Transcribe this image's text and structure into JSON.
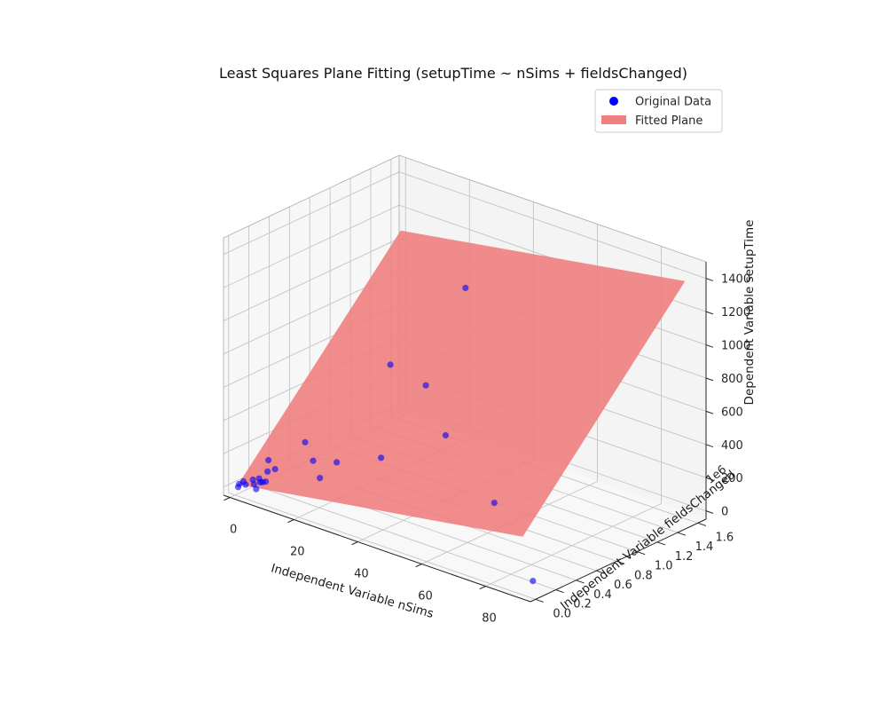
{
  "chart_data": {
    "type": "scatter3d",
    "title": "Least Squares Plane Fitting (setupTime ~ nSims + fieldsChanged)",
    "xlabel": "Independent Variable nSims",
    "ylabel": "Independent Variable fieldsChanged",
    "zlabel": "Dependent Variable setupTime",
    "y_offset_label": "1e6",
    "xlim": [
      -2,
      94
    ],
    "ylim": [
      -0.05,
      1.68
    ],
    "zlim": [
      -50,
      1500
    ],
    "x_ticks": [
      "0",
      "20",
      "40",
      "60",
      "80"
    ],
    "y_ticks": [
      "0.0",
      "0.2",
      "0.4",
      "0.6",
      "0.8",
      "1.0",
      "1.2",
      "1.4",
      "1.6"
    ],
    "z_ticks": [
      "0",
      "200",
      "400",
      "600",
      "800",
      "1000",
      "1200",
      "1400"
    ],
    "legend": {
      "placement": "top-right",
      "entries": [
        "Original Data",
        "Fitted Plane"
      ]
    },
    "colors": {
      "points": "#0000ff",
      "plane": "#f08080"
    },
    "plane": {
      "corners": [
        {
          "x": 1.0,
          "y": 0.0,
          "z": 20
        },
        {
          "x": 90.0,
          "y": 0.0,
          "z": 300
        },
        {
          "x": 90.0,
          "y": 1.6,
          "z": 1380
        },
        {
          "x": 1.0,
          "y": 1.6,
          "z": 1090
        }
      ]
    },
    "series": [
      {
        "name": "Original Data",
        "points": [
          {
            "x": 1,
            "y": 0.0,
            "z": 5
          },
          {
            "x": 1,
            "y": 0.01,
            "z": 20
          },
          {
            "x": 2,
            "y": 0.02,
            "z": 40
          },
          {
            "x": 3,
            "y": 0.01,
            "z": 30
          },
          {
            "x": 4,
            "y": 0.05,
            "z": 55
          },
          {
            "x": 5,
            "y": 0.03,
            "z": 40
          },
          {
            "x": 6,
            "y": 0.02,
            "z": 20
          },
          {
            "x": 6,
            "y": 0.06,
            "z": 50
          },
          {
            "x": 7,
            "y": 0.05,
            "z": 60
          },
          {
            "x": 8,
            "y": 0.05,
            "z": 70
          },
          {
            "x": 5,
            "y": 0.08,
            "z": 60
          },
          {
            "x": 7,
            "y": 0.1,
            "z": 110
          },
          {
            "x": 6,
            "y": 0.14,
            "z": 160
          },
          {
            "x": 10,
            "y": 0.08,
            "z": 150
          },
          {
            "x": 14,
            "y": 0.25,
            "z": 290
          },
          {
            "x": 20,
            "y": 0.14,
            "z": 250
          },
          {
            "x": 24,
            "y": 0.08,
            "z": 190
          },
          {
            "x": 28,
            "y": 0.12,
            "z": 300
          },
          {
            "x": 33,
            "y": 0.4,
            "z": 280
          },
          {
            "x": 27,
            "y": 0.68,
            "z": 720
          },
          {
            "x": 40,
            "y": 0.62,
            "z": 700
          },
          {
            "x": 50,
            "y": 0.5,
            "z": 500
          },
          {
            "x": 70,
            "y": 0.35,
            "z": 270
          },
          {
            "x": 90,
            "y": 0.1,
            "z": 5
          },
          {
            "x": 34,
            "y": 1.2,
            "z": 1080
          }
        ]
      }
    ]
  }
}
